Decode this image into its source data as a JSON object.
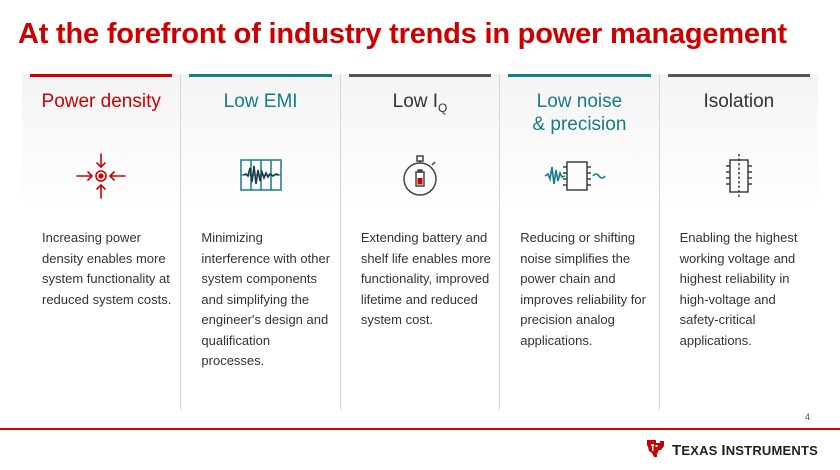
{
  "title": "At the forefront of industry trends in power management",
  "columns": [
    {
      "heading": "Power density",
      "description": "Increasing power density enables more system functionality at reduced system costs.",
      "icon": "power-density-icon",
      "accent_color": "#cc0000",
      "heading_color": "#cc0000"
    },
    {
      "heading": "Low EMI",
      "description": "Minimizing interference with other system components and simplifying the engineer's design and qualification processes.",
      "icon": "emi-waveform-icon",
      "accent_color": "#167c88",
      "heading_color": "#167c88"
    },
    {
      "heading_main": "Low I",
      "heading_sub": "Q",
      "description": "Extending battery and shelf life enables more functionality, improved lifetime and reduced system cost.",
      "icon": "stopwatch-battery-icon",
      "accent_color": "#555555",
      "heading_color": "#333333"
    },
    {
      "heading_line1": "Low noise",
      "heading_line2": "& precision",
      "description": "Reducing or shifting noise simplifies the power chain and improves reliability for precision analog applications.",
      "icon": "noise-chip-icon",
      "accent_color": "#167c88",
      "heading_color": "#167c88"
    },
    {
      "heading": "Isolation",
      "description": "Enabling the highest working voltage and highest reliability in high-voltage and safety-critical applications.",
      "icon": "isolation-chip-icon",
      "accent_color": "#555555",
      "heading_color": "#333333"
    }
  ],
  "page_number": "4",
  "logo": {
    "text_big_1": "T",
    "text_rest_1": "EXAS ",
    "text_big_2": "I",
    "text_rest_2": "NSTRUMENTS",
    "icon": "texas-instruments-logo-icon",
    "color": "#cc0000"
  }
}
